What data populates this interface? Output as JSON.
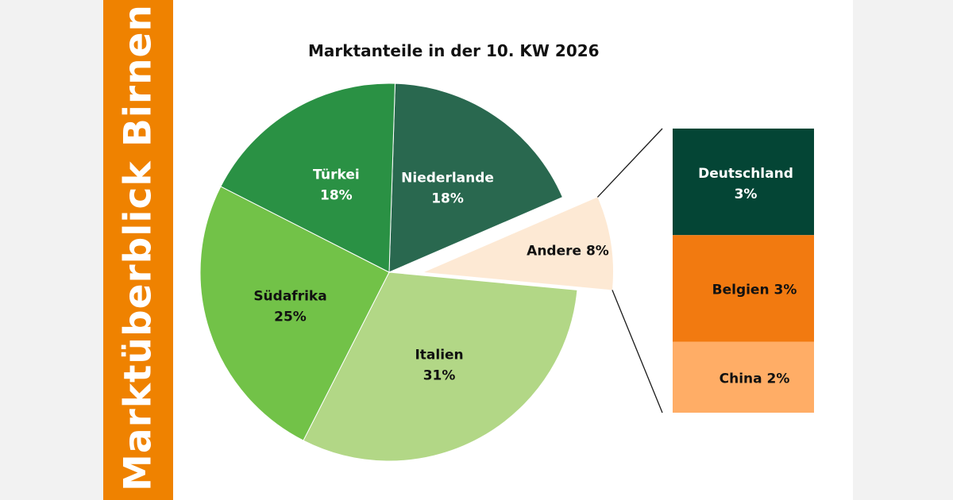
{
  "banner": "Marktüberblick Birnen",
  "chart_data": {
    "type": "pie",
    "title": "Marktanteile in der 10. KW 2026",
    "unit": "%",
    "slices": [
      {
        "name": "Niederlande",
        "value": 18,
        "label_line1": "Niederlande",
        "label_line2": "18%",
        "color": "#29684f",
        "text_color": "#ffffff"
      },
      {
        "name": "Andere",
        "value": 8,
        "label_line1": "Andere 8%",
        "label_line2": "",
        "color": "#fde9d4",
        "text_color": "#111111",
        "exploded": true
      },
      {
        "name": "Italien",
        "value": 31,
        "label_line1": "Italien",
        "label_line2": "31%",
        "color": "#b2d786",
        "text_color": "#111111"
      },
      {
        "name": "Südafrika",
        "value": 25,
        "label_line1": "Südafrika",
        "label_line2": "25%",
        "color": "#72c248",
        "text_color": "#111111"
      },
      {
        "name": "Türkei",
        "value": 18,
        "label_line1": "Türkei",
        "label_line2": "18%",
        "color": "#2a9144",
        "text_color": "#ffffff"
      }
    ],
    "breakdown": {
      "of": "Andere",
      "segments": [
        {
          "name": "Deutschland",
          "value": 3,
          "label_line1": "Deutschland",
          "label_line2": "3%",
          "color": "#044535",
          "text_color": "#ffffff"
        },
        {
          "name": "Belgien",
          "value": 3,
          "label_line1": "Belgien 3%",
          "label_line2": "",
          "color": "#f27a10",
          "text_color": "#111111"
        },
        {
          "name": "China",
          "value": 2,
          "label_line1": "China 2%",
          "label_line2": "",
          "color": "#ffad66",
          "text_color": "#111111"
        }
      ]
    }
  }
}
